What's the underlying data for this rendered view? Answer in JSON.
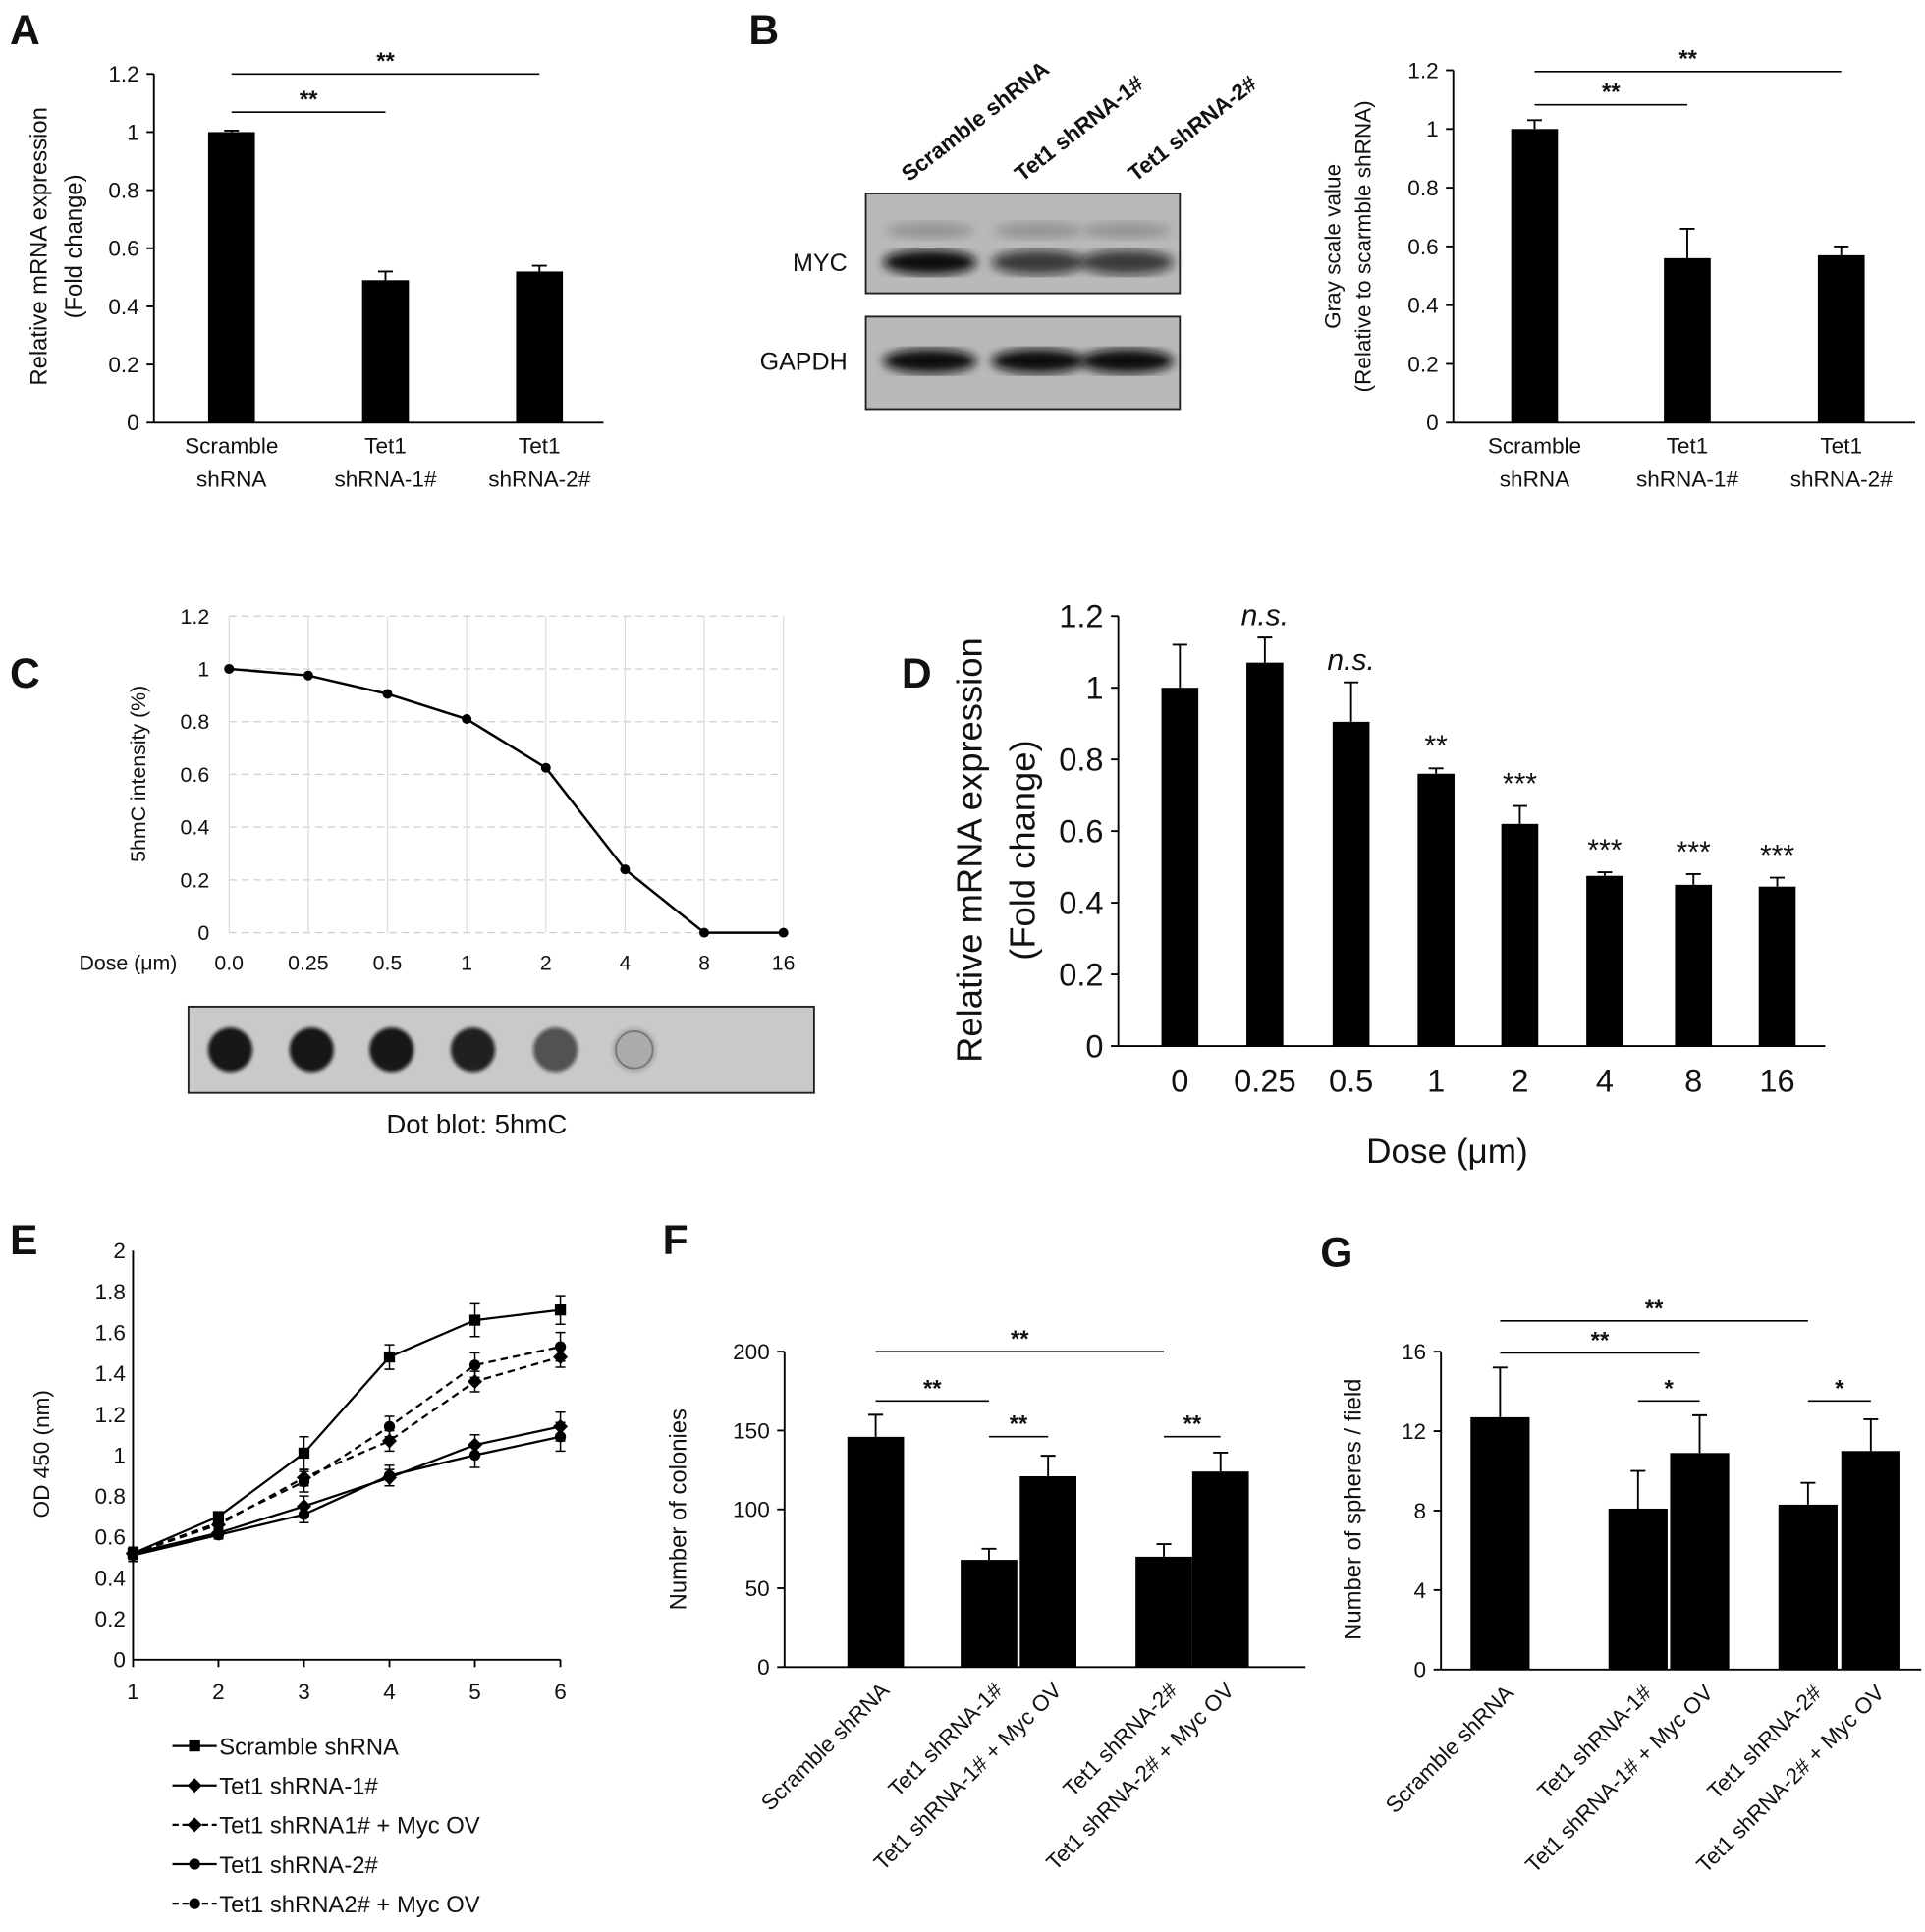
{
  "chart_data": [
    {
      "panel": "A",
      "type": "bar",
      "y_label": [
        "Relative mRNA expression",
        "(Fold change)"
      ],
      "categories": [
        "Scramble shRNA",
        "Tet1 shRNA-1#",
        "Tet1 shRNA-2#"
      ],
      "values": [
        1.0,
        0.49,
        0.52
      ],
      "errors": [
        0.005,
        0.03,
        0.02
      ],
      "color": "#000000",
      "ylim": [
        0,
        1.2
      ],
      "yticks": [
        0,
        0.2,
        0.4,
        0.6,
        0.8,
        1,
        1.2
      ],
      "brackets": [
        {
          "from": 0,
          "to": 1,
          "label": "**"
        },
        {
          "from": 0,
          "to": 2,
          "label": "**"
        }
      ]
    },
    {
      "panel": "B",
      "blot": {
        "lanes": [
          "Scramble shRNA",
          "Tet1 shRNA-1#",
          "Tet1 shRNA-2#"
        ],
        "rows": [
          "MYC",
          "GAPDH"
        ]
      },
      "type": "bar",
      "y_label": [
        "Gray scale value",
        "(Relative to scarmble shRNA)"
      ],
      "categories": [
        "Scramble shRNA",
        "Tet1 shRNA-1#",
        "Tet1 shRNA-2#"
      ],
      "values": [
        1.0,
        0.56,
        0.57
      ],
      "errors": [
        0.03,
        0.1,
        0.03
      ],
      "color": "#000000",
      "ylim": [
        0,
        1.2
      ],
      "yticks": [
        0,
        0.2,
        0.4,
        0.6,
        0.8,
        1,
        1.2
      ],
      "brackets": [
        {
          "from": 0,
          "to": 1,
          "label": "**"
        },
        {
          "from": 0,
          "to": 2,
          "label": "**"
        }
      ]
    },
    {
      "panel": "C",
      "type": "line",
      "x_label": "Dose (μm)",
      "y_label": [
        "5hmC intensity (%)"
      ],
      "categories": [
        "0.0",
        "0.25",
        "0.5",
        "1",
        "2",
        "4",
        "8",
        "16"
      ],
      "values": [
        1,
        0.975,
        0.905,
        0.81,
        0.625,
        0.24,
        0,
        0
      ],
      "color": "#000000",
      "ylim": [
        0,
        1.2
      ],
      "yticks": [
        0,
        0.2,
        0.4,
        0.6,
        0.8,
        1,
        1.2
      ],
      "grid": true,
      "blot": {
        "caption": "Dot blot: 5hmC"
      }
    },
    {
      "panel": "D",
      "type": "bar",
      "y_label": [
        "Relative mRNA expression",
        "(Fold change)"
      ],
      "x_label": "Dose (μm)",
      "categories": [
        "0",
        "0.25",
        "0.5",
        "1",
        "2",
        "4",
        "8",
        "16"
      ],
      "values": [
        1.0,
        1.07,
        0.905,
        0.76,
        0.62,
        0.475,
        0.45,
        0.445
      ],
      "errors": [
        0.12,
        0.07,
        0.11,
        0.015,
        0.05,
        0.01,
        0.03,
        0.025
      ],
      "value_annotations": [
        null,
        "n.s.",
        "n.s.",
        "**",
        "***",
        "***",
        "***",
        "***"
      ],
      "color": "#000000",
      "ylim": [
        0,
        1.2
      ],
      "yticks": [
        0,
        0.2,
        0.4,
        0.6,
        0.8,
        1,
        1.2
      ]
    },
    {
      "panel": "E",
      "type": "line",
      "y_label": [
        "OD 450 (nm)"
      ],
      "x": [
        1,
        2,
        3,
        4,
        5,
        6
      ],
      "xlim": [
        1,
        6
      ],
      "xticks": [
        1,
        2,
        3,
        4,
        5,
        6
      ],
      "ylim": [
        0,
        2
      ],
      "yticks": [
        0,
        0.2,
        0.4,
        0.6,
        0.8,
        1,
        1.2,
        1.4,
        1.6,
        1.8,
        2
      ],
      "series": [
        {
          "name": "Scramble shRNA",
          "color": "#000000",
          "marker": "square",
          "dashed": false,
          "values": [
            0.52,
            0.7,
            1.01,
            1.48,
            1.66,
            1.71
          ],
          "errors": [
            0.03,
            0.02,
            0.08,
            0.06,
            0.08,
            0.07
          ]
        },
        {
          "name": "Tet1 shRNA-1#",
          "color": "#000000",
          "marker": "diamond",
          "dashed": false,
          "values": [
            0.52,
            0.62,
            0.75,
            0.89,
            1.05,
            1.14
          ],
          "errors": [
            0.02,
            0.02,
            0.05,
            0.04,
            0.05,
            0.07
          ]
        },
        {
          "name": "Tet1 shRNA1# + Myc OV",
          "color": "#000000",
          "marker": "diamond",
          "dashed": true,
          "values": [
            0.52,
            0.66,
            0.89,
            1.07,
            1.36,
            1.48
          ],
          "errors": [
            0.02,
            0.02,
            0.04,
            0.05,
            0.05,
            0.05
          ]
        },
        {
          "name": "Tet1 shRNA-2#",
          "color": "#000000",
          "marker": "circle",
          "dashed": false,
          "values": [
            0.51,
            0.61,
            0.71,
            0.9,
            1.0,
            1.09
          ],
          "errors": [
            0.03,
            0.02,
            0.04,
            0.05,
            0.06,
            0.07
          ]
        },
        {
          "name": "Tet1 shRNA2# + Myc OV",
          "color": "#000000",
          "marker": "circle",
          "dashed": true,
          "values": [
            0.52,
            0.67,
            0.87,
            1.14,
            1.44,
            1.53
          ],
          "errors": [
            0.02,
            0.03,
            0.05,
            0.05,
            0.06,
            0.07
          ]
        }
      ]
    },
    {
      "panel": "F",
      "type": "bar",
      "y_label": [
        "Number of colonies"
      ],
      "categories": [
        "Scramble shRNA",
        "Tet1 shRNA-1#",
        "Tet1 shRNA-1# + Myc OV",
        "Tet1 shRNA-2#",
        "Tet1 shRNA-2# + Myc OV"
      ],
      "values": [
        146,
        68,
        121,
        70,
        124
      ],
      "errors": [
        14,
        7,
        13,
        8,
        12
      ],
      "color": "#000000",
      "ylim": [
        0,
        200
      ],
      "yticks": [
        0,
        50,
        100,
        150,
        200
      ],
      "brackets": [
        {
          "from": 0,
          "to": 3,
          "label": "**"
        },
        {
          "from": 0,
          "to": 1,
          "label": "**"
        },
        {
          "from": 1,
          "to": 2,
          "label": "**"
        },
        {
          "from": 3,
          "to": 4,
          "label": "**"
        }
      ]
    },
    {
      "panel": "G",
      "type": "bar",
      "y_label": [
        "Number of spheres / field"
      ],
      "categories": [
        "Scramble shRNA",
        "Tet1 shRNA-1#",
        "Tet1 shRNA-1# + Myc OV",
        "Tet1 shRNA-2#",
        "Tet1 shRNA-2# + Myc OV"
      ],
      "values": [
        12.7,
        8.1,
        10.9,
        8.3,
        11.0
      ],
      "errors": [
        2.5,
        1.9,
        1.9,
        1.1,
        1.6
      ],
      "color": "#000000",
      "ylim": [
        0,
        16
      ],
      "yticks": [
        0,
        4,
        8,
        12,
        16
      ],
      "brackets": [
        {
          "from": 0,
          "to": 3,
          "label": "**"
        },
        {
          "from": 0,
          "to": 2,
          "label": "**"
        },
        {
          "from": 1,
          "to": 2,
          "label": "*"
        },
        {
          "from": 3,
          "to": 4,
          "label": "*"
        }
      ]
    }
  ]
}
